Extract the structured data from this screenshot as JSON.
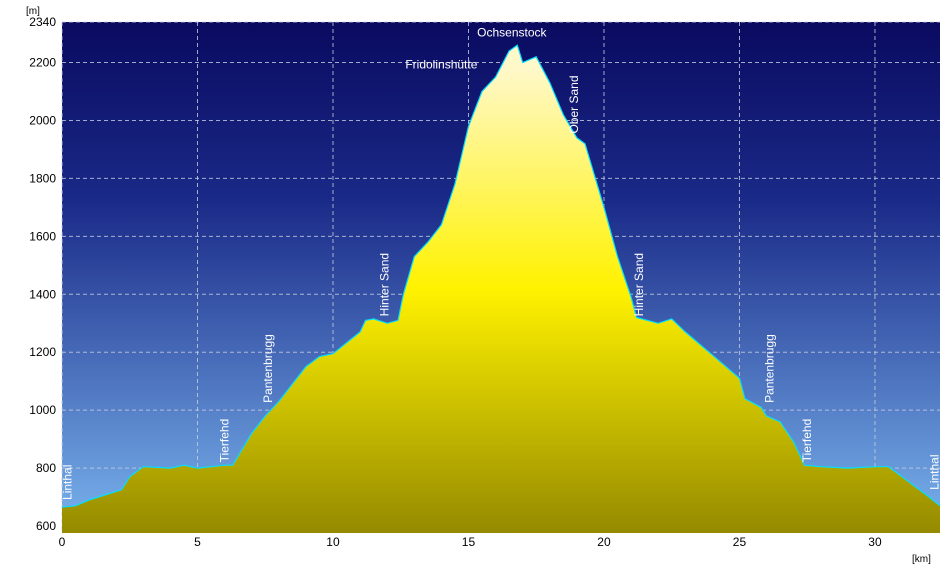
{
  "chart_data": {
    "type": "area",
    "y_unit": "[m]",
    "x_unit": "[km]",
    "x": [
      0,
      0.5,
      1,
      2.2,
      2.5,
      3,
      4,
      4.5,
      5,
      6,
      6.3,
      7,
      7.5,
      8,
      8.5,
      9,
      9.5,
      10,
      11,
      11.2,
      11.5,
      12,
      12.4,
      12.6,
      13,
      13.5,
      14,
      14.5,
      15,
      15.5,
      16,
      16.5,
      16.8,
      17,
      17.5,
      18,
      18.5,
      19,
      19.3,
      20,
      20.5,
      21,
      21.2,
      22,
      22.5,
      23,
      24,
      25,
      25.2,
      25.8,
      26,
      26.5,
      27,
      27.4,
      28,
      29,
      30,
      30.5,
      31,
      32,
      32.4
    ],
    "values": [
      665,
      670,
      690,
      725,
      770,
      805,
      800,
      810,
      800,
      810,
      810,
      920,
      980,
      1030,
      1090,
      1150,
      1185,
      1195,
      1270,
      1310,
      1315,
      1300,
      1310,
      1400,
      1530,
      1580,
      1640,
      1780,
      1980,
      2100,
      2150,
      2240,
      2260,
      2200,
      2220,
      2130,
      2020,
      1940,
      1920,
      1700,
      1530,
      1390,
      1320,
      1300,
      1315,
      1270,
      1190,
      1110,
      1040,
      1010,
      980,
      960,
      890,
      810,
      805,
      800,
      805,
      805,
      770,
      700,
      670
    ],
    "color": "#00e0ff",
    "xlim": [
      0,
      32.4
    ],
    "ylim": [
      576,
      2340
    ],
    "xticks": [
      0,
      5,
      10,
      15,
      20,
      25,
      30
    ],
    "yticks": [
      600,
      800,
      1000,
      1200,
      1400,
      1600,
      1800,
      2000,
      2200,
      2340
    ],
    "grid": true,
    "annotations": [
      {
        "text": "Linthal",
        "x": 0.2,
        "y": 690,
        "vertical": true
      },
      {
        "text": "Tierfehd",
        "x": 6.0,
        "y": 820,
        "vertical": true
      },
      {
        "text": "Pantenbrugg",
        "x": 7.6,
        "y": 1025,
        "vertical": true
      },
      {
        "text": "Hinter Sand",
        "x": 11.9,
        "y": 1324,
        "vertical": true
      },
      {
        "text": "Fridolinshütte",
        "x": 14.0,
        "y": 2180,
        "vertical": false
      },
      {
        "text": "Ochsenstock",
        "x": 16.6,
        "y": 2290,
        "vertical": false
      },
      {
        "text": "Ober Sand",
        "x": 18.9,
        "y": 1955,
        "vertical": true
      },
      {
        "text": "Hinter Sand",
        "x": 21.3,
        "y": 1324,
        "vertical": true
      },
      {
        "text": "Pantenbrugg",
        "x": 26.1,
        "y": 1025,
        "vertical": true
      },
      {
        "text": "Tierfehd",
        "x": 27.5,
        "y": 820,
        "vertical": true
      },
      {
        "text": "Linthal",
        "x": 32.2,
        "y": 725,
        "vertical": true
      }
    ]
  }
}
